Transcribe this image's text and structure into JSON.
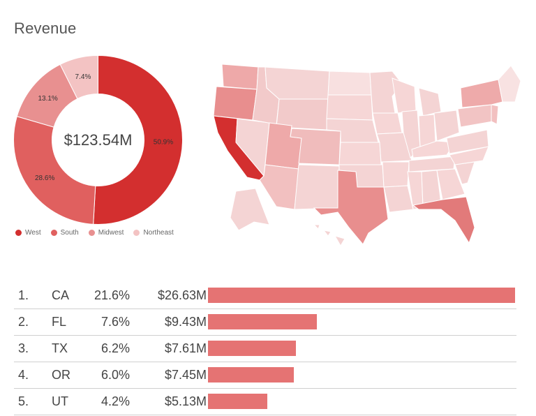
{
  "title": "Revenue",
  "colors": {
    "west": "#d32f2f",
    "south": "#e0605f",
    "midwest": "#e89090",
    "northeast": "#f3c3c3",
    "map_base": "#f4d4d4",
    "map_stroke": "#ffffff",
    "bar": "#e57373"
  },
  "chart_data": [
    {
      "type": "pie",
      "center_label": "$123.54M",
      "slices": [
        {
          "name": "West",
          "value": 50.9,
          "label": "50.9%"
        },
        {
          "name": "South",
          "value": 28.6,
          "label": "28.6%"
        },
        {
          "name": "Midwest",
          "value": 13.1,
          "label": "13.1%"
        },
        {
          "name": "Northeast",
          "value": 7.4,
          "label": "7.4%"
        }
      ],
      "legend": [
        "West",
        "South",
        "Midwest",
        "Northeast"
      ],
      "legend_position": "bottom-left"
    },
    {
      "type": "bar",
      "orientation": "horizontal",
      "categories": [
        "CA",
        "FL",
        "TX",
        "OR",
        "UT"
      ],
      "values": [
        26.63,
        9.43,
        7.61,
        7.45,
        5.13
      ],
      "rows": [
        {
          "rank": "1.",
          "state": "CA",
          "pct": "21.6%",
          "value": "$26.63M"
        },
        {
          "rank": "2.",
          "state": "FL",
          "pct": "7.6%",
          "value": "$9.43M"
        },
        {
          "rank": "3.",
          "state": "TX",
          "pct": "6.2%",
          "value": "$7.61M"
        },
        {
          "rank": "4.",
          "state": "OR",
          "pct": "6.0%",
          "value": "$7.45M"
        },
        {
          "rank": "5.",
          "state": "UT",
          "pct": "4.2%",
          "value": "$5.13M"
        }
      ]
    }
  ]
}
